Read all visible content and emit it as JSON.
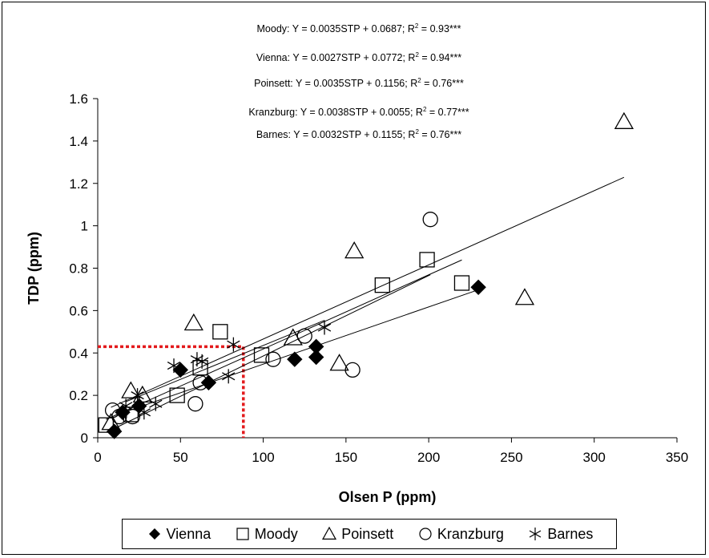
{
  "equations": [
    {
      "text": "Moody: Y = 0.0035STP + 0.0687; R",
      "sup": "2",
      "tail": " = 0.93***"
    },
    {
      "text": "Vienna: Y = 0.0027STP + 0.0772; R",
      "sup": "2",
      "tail": " = 0.94***"
    },
    {
      "text": "Poinsett: Y = 0.0035STP + 0.1156; R",
      "sup": "2",
      "tail": " = 0.76***"
    },
    {
      "text": "Kranzburg: Y = 0.0038STP + 0.0055; R",
      "sup": "2",
      "tail": " = 0.77***"
    },
    {
      "text": "Barnes: Y = 0.0032STP + 0.1155; R",
      "sup": "2",
      "tail": " = 0.76***"
    }
  ],
  "legend": [
    {
      "label": "Vienna",
      "marker": "filled-diamond"
    },
    {
      "label": "Moody",
      "marker": "open-square"
    },
    {
      "label": "Poinsett",
      "marker": "open-triangle"
    },
    {
      "label": "Kranzburg",
      "marker": "open-circle"
    },
    {
      "label": "Barnes",
      "marker": "asterisk"
    }
  ],
  "chart_data": {
    "type": "scatter",
    "xlabel": "Olsen P (ppm)",
    "ylabel": "TDP (ppm)",
    "xlim": [
      0,
      350
    ],
    "ylim": [
      0,
      1.6
    ],
    "x_ticks": [
      "0",
      "50",
      "100",
      "150",
      "200",
      "250",
      "300",
      "350"
    ],
    "y_ticks": [
      "0",
      "0.2",
      "0.4",
      "0.6",
      "0.8",
      "1",
      "1.2",
      "1.4",
      "1.6"
    ],
    "grid": false,
    "legend_position": "bottom",
    "series": [
      {
        "name": "Vienna",
        "marker": "filled-diamond",
        "points": [
          [
            10,
            0.03
          ],
          [
            15,
            0.12
          ],
          [
            25,
            0.15
          ],
          [
            50,
            0.32
          ],
          [
            67,
            0.26
          ],
          [
            119,
            0.37
          ],
          [
            132,
            0.43
          ],
          [
            132,
            0.38
          ],
          [
            230,
            0.71
          ]
        ]
      },
      {
        "name": "Moody",
        "marker": "open-square",
        "points": [
          [
            5,
            0.06
          ],
          [
            20,
            0.11
          ],
          [
            48,
            0.2
          ],
          [
            62,
            0.33
          ],
          [
            74,
            0.5
          ],
          [
            99,
            0.39
          ],
          [
            172,
            0.72
          ],
          [
            199,
            0.84
          ],
          [
            220,
            0.73
          ]
        ]
      },
      {
        "name": "Poinsett",
        "marker": "open-triangle",
        "points": [
          [
            8,
            0.07
          ],
          [
            20,
            0.22
          ],
          [
            27,
            0.2
          ],
          [
            58,
            0.54
          ],
          [
            118,
            0.47
          ],
          [
            146,
            0.35
          ],
          [
            155,
            0.88
          ],
          [
            258,
            0.66
          ],
          [
            318,
            1.49
          ]
        ]
      },
      {
        "name": "Kranzburg",
        "marker": "open-circle",
        "points": [
          [
            9,
            0.13
          ],
          [
            13,
            0.1
          ],
          [
            21,
            0.1
          ],
          [
            59,
            0.16
          ],
          [
            62,
            0.26
          ],
          [
            106,
            0.37
          ],
          [
            125,
            0.48
          ],
          [
            154,
            0.32
          ],
          [
            201,
            1.03
          ]
        ]
      },
      {
        "name": "Barnes",
        "marker": "asterisk",
        "points": [
          [
            17,
            0.15
          ],
          [
            24,
            0.2
          ],
          [
            28,
            0.12
          ],
          [
            35,
            0.16
          ],
          [
            46,
            0.34
          ],
          [
            60,
            0.37
          ],
          [
            63,
            0.36
          ],
          [
            79,
            0.29
          ],
          [
            82,
            0.44
          ],
          [
            137,
            0.52
          ]
        ]
      }
    ],
    "trendlines": [
      {
        "name": "Moody",
        "slope": 0.0035,
        "intercept": 0.0687,
        "x_range": [
          5,
          220
        ]
      },
      {
        "name": "Vienna",
        "slope": 0.0027,
        "intercept": 0.0772,
        "x_range": [
          10,
          230
        ]
      },
      {
        "name": "Poinsett",
        "slope": 0.0035,
        "intercept": 0.1156,
        "x_range": [
          8,
          318
        ]
      },
      {
        "name": "Kranzburg",
        "slope": 0.0038,
        "intercept": 0.0055,
        "x_range": [
          9,
          201
        ]
      },
      {
        "name": "Barnes",
        "slope": 0.0032,
        "intercept": 0.1155,
        "x_range": [
          17,
          137
        ]
      }
    ],
    "reference_line": {
      "color": "#e31a1c",
      "x": 88,
      "y": 0.43
    }
  }
}
